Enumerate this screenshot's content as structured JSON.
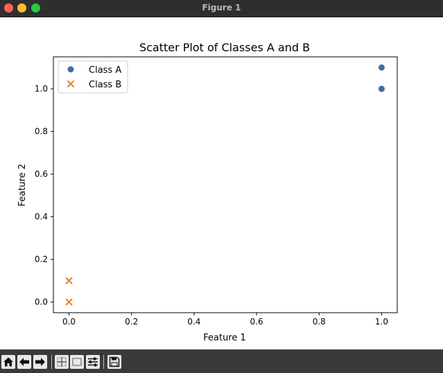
{
  "window": {
    "title": "Figure 1"
  },
  "toolbar": {
    "icons": [
      "home-icon",
      "back-arrow-icon",
      "forward-arrow-icon",
      "pan-icon",
      "zoom-icon",
      "configure-subplots-icon",
      "save-icon"
    ]
  },
  "chart_data": {
    "type": "scatter",
    "title": "Scatter Plot of Classes A and B",
    "xlabel": "Feature 1",
    "ylabel": "Feature 2",
    "xlim": [
      -0.05,
      1.05
    ],
    "ylim": [
      -0.05,
      1.15
    ],
    "xticks": [
      "0.0",
      "0.2",
      "0.4",
      "0.6",
      "0.8",
      "1.0"
    ],
    "yticks": [
      "0.0",
      "0.2",
      "0.4",
      "0.6",
      "0.8",
      "1.0"
    ],
    "grid": false,
    "legend_position": "top-left",
    "series": [
      {
        "name": "Class A",
        "marker": "circle",
        "color": "#3a6ea5",
        "x": [
          1.0,
          1.0
        ],
        "y": [
          1.0,
          1.1
        ]
      },
      {
        "name": "Class B",
        "marker": "x",
        "color": "#e8822a",
        "x": [
          0.0,
          0.0
        ],
        "y": [
          0.0,
          0.1
        ]
      }
    ]
  }
}
